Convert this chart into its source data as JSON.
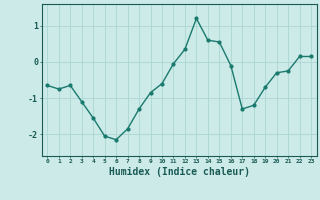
{
  "x": [
    0,
    1,
    2,
    3,
    4,
    5,
    6,
    7,
    8,
    9,
    10,
    11,
    12,
    13,
    14,
    15,
    16,
    17,
    18,
    19,
    20,
    21,
    22,
    23
  ],
  "y": [
    -0.65,
    -0.75,
    -0.65,
    -1.1,
    -1.55,
    -2.05,
    -2.15,
    -1.85,
    -1.3,
    -0.85,
    -0.6,
    -0.05,
    0.35,
    1.2,
    0.6,
    0.55,
    -0.1,
    -1.3,
    -1.2,
    -0.7,
    -0.3,
    -0.25,
    0.15,
    0.15
  ],
  "line_color": "#1a7a6e",
  "marker": "o",
  "marker_size": 2.0,
  "line_width": 1.0,
  "bg_color": "#cceae8",
  "grid_color": "#b0d8d5",
  "tick_color": "#1a5a54",
  "xlabel": "Humidex (Indice chaleur)",
  "xlabel_fontsize": 7,
  "ylabel_ticks": [
    -2,
    -1,
    0,
    1
  ],
  "xlim": [
    -0.5,
    23.5
  ],
  "ylim": [
    -2.6,
    1.6
  ],
  "xtick_labels": [
    "0",
    "1",
    "2",
    "3",
    "4",
    "5",
    "6",
    "7",
    "8",
    "9",
    "10",
    "11",
    "12",
    "13",
    "14",
    "15",
    "16",
    "17",
    "18",
    "19",
    "20",
    "21",
    "22",
    "23"
  ]
}
